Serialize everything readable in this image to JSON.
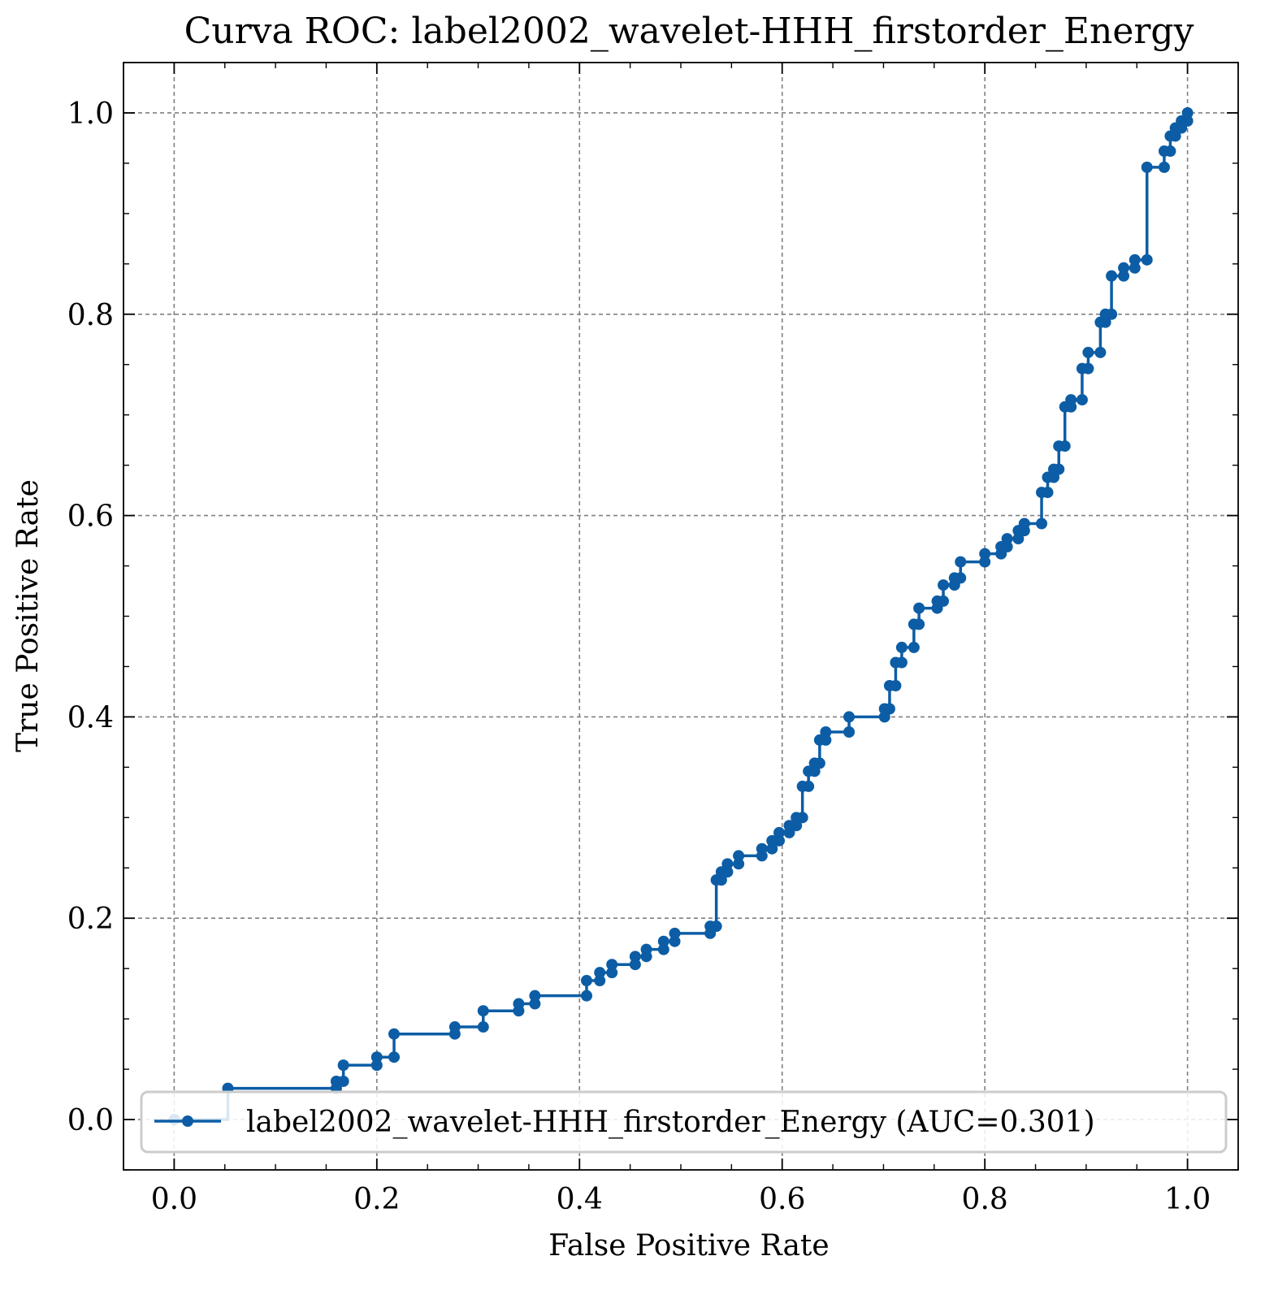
{
  "chart_data": {
    "type": "line",
    "title": "Curva ROC: label2002_wavelet-HHH_firstorder_Energy",
    "xlabel": "False Positive Rate",
    "ylabel": "True Positive Rate",
    "xlim": [
      -0.05,
      1.05
    ],
    "ylim": [
      -0.05,
      1.05
    ],
    "xticks": [
      0.0,
      0.2,
      0.4,
      0.6,
      0.8,
      1.0
    ],
    "xtick_labels": [
      "0.0",
      "0.2",
      "0.4",
      "0.6",
      "0.8",
      "1.0"
    ],
    "yticks": [
      0.0,
      0.2,
      0.4,
      0.6,
      0.8,
      1.0
    ],
    "ytick_labels": [
      "0.0",
      "0.2",
      "0.4",
      "0.6",
      "0.8",
      "1.0"
    ],
    "grid": true,
    "legend_position": "lower-right",
    "series": [
      {
        "name": "label2002_wavelet-HHH_firstorder_Energy (AUC=0.301)",
        "color": "#0C5DA5",
        "marker": "circle",
        "drawstyle": "steps-post",
        "x": [
          0.0,
          0.053,
          0.16,
          0.16,
          0.167,
          0.167,
          0.2,
          0.2,
          0.217,
          0.217,
          0.277,
          0.277,
          0.305,
          0.305,
          0.34,
          0.34,
          0.356,
          0.356,
          0.407,
          0.407,
          0.42,
          0.42,
          0.432,
          0.432,
          0.455,
          0.455,
          0.466,
          0.466,
          0.483,
          0.483,
          0.494,
          0.494,
          0.529,
          0.529,
          0.535,
          0.535,
          0.54,
          0.54,
          0.546,
          0.546,
          0.557,
          0.557,
          0.58,
          0.58,
          0.59,
          0.59,
          0.597,
          0.597,
          0.607,
          0.607,
          0.614,
          0.614,
          0.62,
          0.62,
          0.626,
          0.626,
          0.632,
          0.632,
          0.637,
          0.637,
          0.643,
          0.643,
          0.666,
          0.666,
          0.701,
          0.701,
          0.706,
          0.706,
          0.712,
          0.712,
          0.718,
          0.718,
          0.73,
          0.73,
          0.735,
          0.735,
          0.753,
          0.753,
          0.759,
          0.759,
          0.77,
          0.77,
          0.776,
          0.776,
          0.8,
          0.8,
          0.816,
          0.816,
          0.822,
          0.822,
          0.833,
          0.833,
          0.839,
          0.839,
          0.856,
          0.856,
          0.862,
          0.862,
          0.868,
          0.868,
          0.873,
          0.873,
          0.879,
          0.879,
          0.885,
          0.885,
          0.896,
          0.896,
          0.902,
          0.902,
          0.914,
          0.914,
          0.919,
          0.919,
          0.925,
          0.925,
          0.937,
          0.937,
          0.948,
          0.948,
          0.96,
          0.96,
          0.977,
          0.977,
          0.983,
          0.983,
          0.988,
          0.988,
          0.994,
          0.994,
          1.0,
          1.0
        ],
        "y": [
          0.0,
          0.031,
          0.031,
          0.038,
          0.038,
          0.054,
          0.054,
          0.062,
          0.062,
          0.085,
          0.085,
          0.092,
          0.092,
          0.108,
          0.108,
          0.115,
          0.115,
          0.123,
          0.123,
          0.138,
          0.138,
          0.146,
          0.146,
          0.154,
          0.154,
          0.162,
          0.162,
          0.169,
          0.169,
          0.177,
          0.177,
          0.185,
          0.185,
          0.192,
          0.192,
          0.238,
          0.238,
          0.246,
          0.246,
          0.254,
          0.254,
          0.262,
          0.262,
          0.269,
          0.269,
          0.277,
          0.277,
          0.285,
          0.285,
          0.292,
          0.292,
          0.3,
          0.3,
          0.331,
          0.331,
          0.346,
          0.346,
          0.354,
          0.354,
          0.377,
          0.377,
          0.385,
          0.385,
          0.4,
          0.4,
          0.408,
          0.408,
          0.431,
          0.431,
          0.454,
          0.454,
          0.469,
          0.469,
          0.492,
          0.492,
          0.508,
          0.508,
          0.515,
          0.515,
          0.531,
          0.531,
          0.538,
          0.538,
          0.554,
          0.554,
          0.562,
          0.562,
          0.569,
          0.569,
          0.577,
          0.577,
          0.585,
          0.585,
          0.592,
          0.592,
          0.623,
          0.623,
          0.638,
          0.638,
          0.646,
          0.646,
          0.669,
          0.669,
          0.708,
          0.708,
          0.715,
          0.715,
          0.746,
          0.746,
          0.762,
          0.762,
          0.792,
          0.792,
          0.8,
          0.8,
          0.838,
          0.838,
          0.846,
          0.846,
          0.854,
          0.854,
          0.946,
          0.946,
          0.962,
          0.962,
          0.977,
          0.977,
          0.985,
          0.985,
          0.992,
          0.992,
          1.0
        ]
      }
    ]
  }
}
